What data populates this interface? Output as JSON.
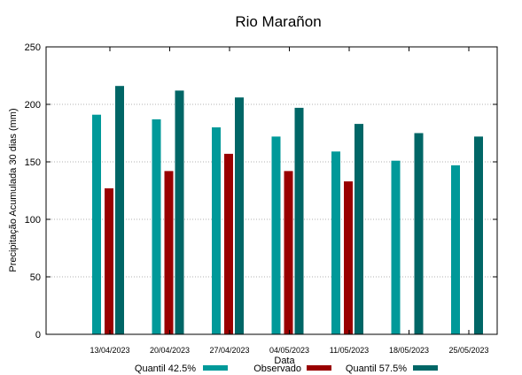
{
  "chart_data": {
    "type": "bar",
    "title": "Rio Marañon",
    "xlabel": "Data",
    "ylabel": "Precipitação Acumulada 30 dias (mm)",
    "ylim": [
      0,
      250
    ],
    "yticks": [
      0,
      50,
      100,
      150,
      200,
      250
    ],
    "grid": true,
    "legend_position": "bottom",
    "categories": [
      "13/04/2023",
      "20/04/2023",
      "27/04/2023",
      "04/05/2023",
      "11/05/2023",
      "18/05/2023",
      "25/05/2023"
    ],
    "series": [
      {
        "name": "Quantil 42.5%",
        "color": "#009999",
        "values": [
          191,
          187,
          180,
          172,
          159,
          151,
          147
        ]
      },
      {
        "name": "Observado",
        "color": "#990000",
        "values": [
          127,
          142,
          157,
          142,
          133,
          null,
          null
        ]
      },
      {
        "name": "Quantil 57.5%",
        "color": "#006666",
        "values": [
          216,
          212,
          206,
          197,
          183,
          175,
          172
        ]
      }
    ]
  }
}
